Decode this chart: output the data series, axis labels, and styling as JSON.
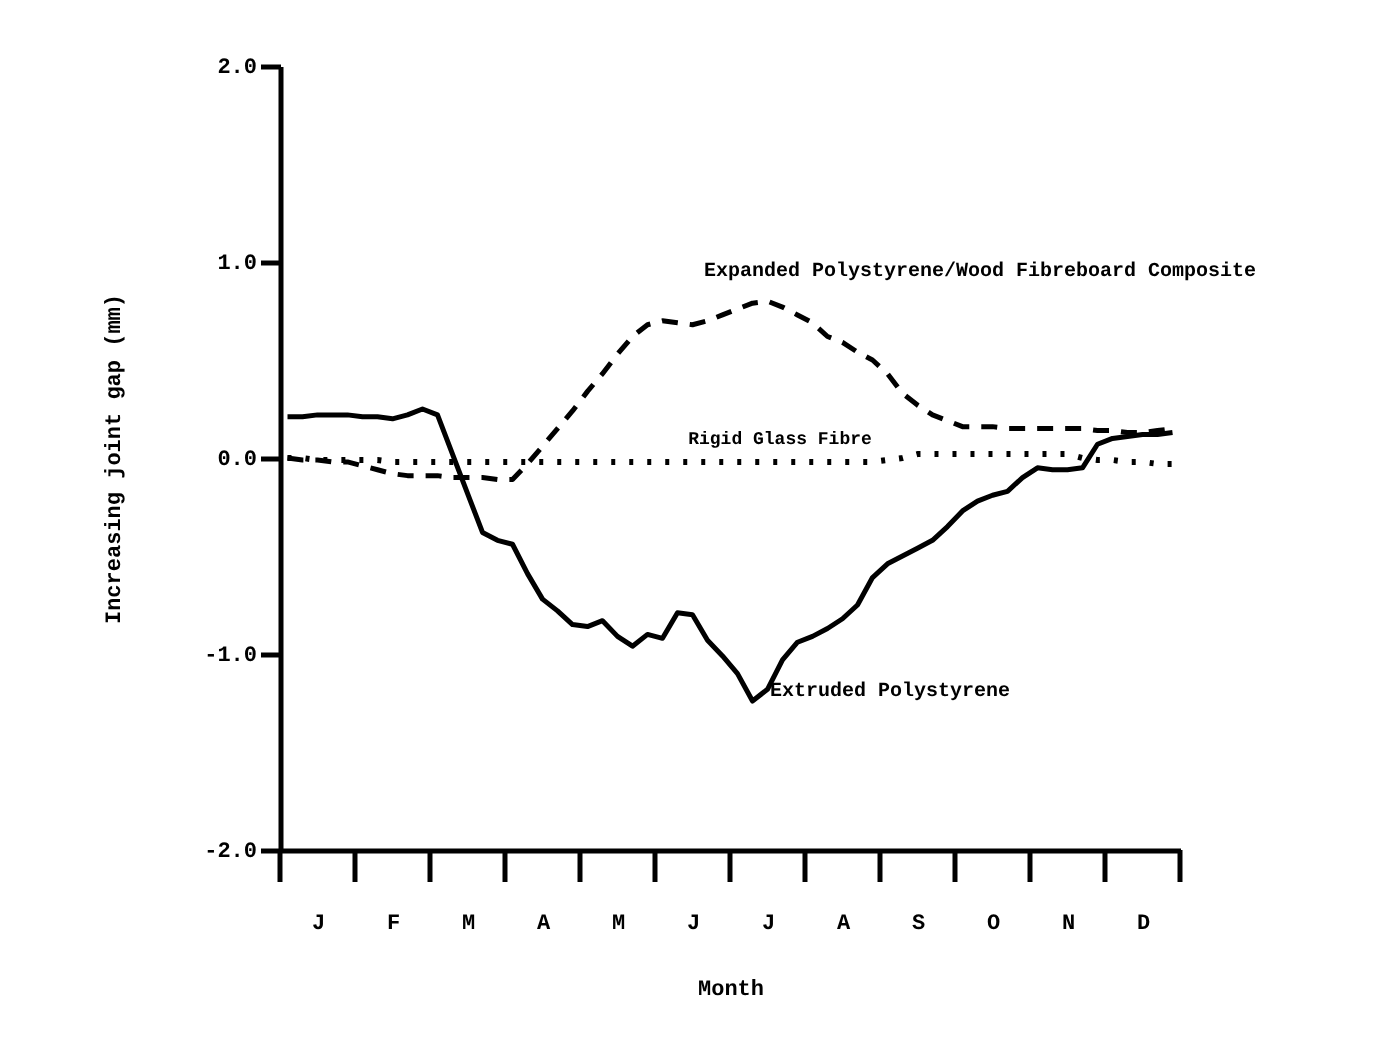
{
  "chart_data": {
    "type": "line",
    "xlabel": "Month",
    "ylabel": "Increasing joint gap (mm)",
    "categories": [
      null,
      null,
      "J",
      null,
      null,
      null,
      null,
      "F",
      null,
      null,
      null,
      null,
      "M",
      null,
      null,
      null,
      null,
      "A",
      null,
      null,
      null,
      null,
      "M",
      null,
      null,
      null,
      null,
      "J",
      null,
      null,
      null,
      null,
      "J",
      null,
      null,
      null,
      null,
      "A",
      null,
      null,
      null,
      null,
      "S",
      null,
      null,
      null,
      null,
      "O",
      null,
      null,
      null,
      null,
      "N",
      null,
      null,
      null,
      null,
      "D",
      null,
      null
    ],
    "ylim": [
      -2,
      2
    ],
    "yticks": [
      {
        "value": 2,
        "label": "2.0"
      },
      {
        "value": 1,
        "label": "1.0"
      },
      {
        "value": 0,
        "label": "0.0"
      },
      {
        "value": -1,
        "label": "-1.0"
      },
      {
        "value": -2,
        "label": "-2.0"
      }
    ],
    "grid": false,
    "series": [
      {
        "name": "Expanded Polystyrene/Wood Fibreboard Composite",
        "color": "#000000",
        "line_style": "dashed",
        "values": [
          0,
          -0.01,
          -0.01,
          -0.02,
          -0.02,
          -0.04,
          -0.06,
          -0.08,
          -0.09,
          -0.09,
          -0.09,
          -0.1,
          -0.1,
          -0.1,
          -0.11,
          -0.11,
          -0.03,
          0.06,
          0.15,
          0.24,
          0.34,
          0.43,
          0.53,
          0.62,
          0.68,
          0.7,
          0.69,
          0.68,
          0.7,
          0.73,
          0.76,
          0.79,
          0.8,
          0.77,
          0.73,
          0.69,
          0.62,
          0.59,
          0.54,
          0.5,
          0.43,
          0.33,
          0.27,
          0.22,
          0.19,
          0.16,
          0.16,
          0.16,
          0.15,
          0.15,
          0.15,
          0.15,
          0.15,
          0.15,
          0.14,
          0.14,
          0.13,
          0.13,
          0.14,
          0.15
        ]
      },
      {
        "name": "Rigid Glass Fibre",
        "color": "#000000",
        "line_style": "dotted",
        "values": [
          0,
          0,
          -0.01,
          -0.01,
          -0.01,
          -0.01,
          -0.01,
          -0.02,
          -0.02,
          -0.02,
          -0.02,
          -0.02,
          -0.02,
          -0.02,
          -0.02,
          -0.02,
          -0.02,
          -0.02,
          -0.02,
          -0.02,
          -0.02,
          -0.02,
          -0.02,
          -0.02,
          -0.02,
          -0.02,
          -0.02,
          -0.02,
          -0.02,
          -0.02,
          -0.02,
          -0.02,
          -0.02,
          -0.02,
          -0.02,
          -0.02,
          -0.02,
          -0.02,
          -0.02,
          -0.02,
          -0.01,
          0,
          0.02,
          0.02,
          0.02,
          0.02,
          0.02,
          0.02,
          0.02,
          0.02,
          0.02,
          0.02,
          0.02,
          0,
          -0.01,
          -0.01,
          -0.02,
          -0.02,
          -0.03,
          -0.03
        ]
      },
      {
        "name": "Extruded Polystyrene",
        "color": "#000000",
        "line_style": "solid",
        "values": [
          0.21,
          0.21,
          0.22,
          0.22,
          0.22,
          0.21,
          0.21,
          0.2,
          0.22,
          0.25,
          0.22,
          0.02,
          -0.18,
          -0.38,
          -0.42,
          -0.44,
          -0.59,
          -0.72,
          -0.78,
          -0.85,
          -0.86,
          -0.83,
          -0.91,
          -0.96,
          -0.9,
          -0.92,
          -0.79,
          -0.8,
          -0.93,
          -1.01,
          -1.1,
          -1.24,
          -1.18,
          -1.03,
          -0.94,
          -0.91,
          -0.87,
          -0.82,
          -0.75,
          -0.61,
          -0.54,
          -0.5,
          -0.46,
          -0.42,
          -0.35,
          -0.27,
          -0.22,
          -0.19,
          -0.17,
          -0.1,
          -0.05,
          -0.06,
          -0.06,
          -0.05,
          0.07,
          0.1,
          0.11,
          0.12,
          0.12,
          0.13
        ]
      }
    ]
  }
}
